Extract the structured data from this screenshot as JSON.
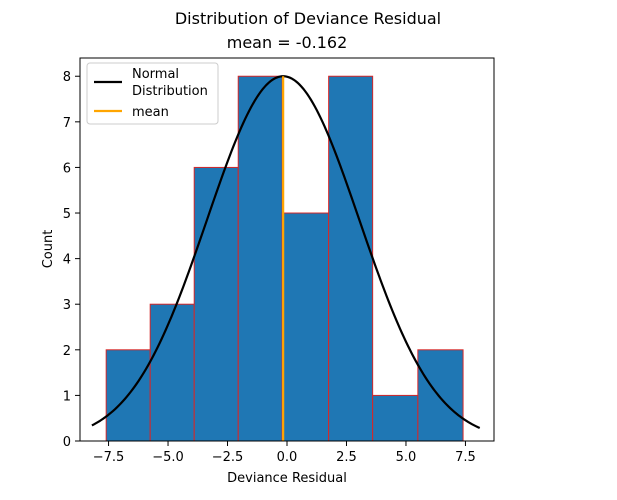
{
  "chart_data": {
    "type": "bar",
    "title": "Distribution of Deviance Residual",
    "subtitle": "mean = -0.162",
    "xlabel": "Deviance Residual",
    "ylabel": "Count",
    "xlim": [
      -8.7,
      8.7
    ],
    "ylim": [
      0,
      8.4
    ],
    "x_ticks": [
      -7.5,
      -5.0,
      -2.5,
      0.0,
      2.5,
      5.0,
      7.5
    ],
    "x_tick_labels": [
      "−7.5",
      "−5.0",
      "−2.5",
      "0.0",
      "2.5",
      "5.0",
      "7.5"
    ],
    "y_ticks": [
      0,
      1,
      2,
      3,
      4,
      5,
      6,
      7,
      8
    ],
    "y_tick_labels": [
      "0",
      "1",
      "2",
      "3",
      "4",
      "5",
      "6",
      "7",
      "8"
    ],
    "bins": [
      {
        "x0": -7.6,
        "x1": -5.75,
        "count": 2
      },
      {
        "x0": -5.75,
        "x1": -3.9,
        "count": 3
      },
      {
        "x0": -3.9,
        "x1": -2.05,
        "count": 6
      },
      {
        "x0": -2.05,
        "x1": -0.2,
        "count": 8
      },
      {
        "x0": -0.2,
        "x1": 1.75,
        "count": 5
      },
      {
        "x0": 1.75,
        "x1": 3.6,
        "count": 8
      },
      {
        "x0": 3.6,
        "x1": 5.5,
        "count": 1
      },
      {
        "x0": 5.5,
        "x1": 7.4,
        "count": 2
      }
    ],
    "mean": -0.162,
    "normal_curve": {
      "mu": -0.162,
      "sigma": 3.2,
      "peak": 8.0,
      "x_range": [
        -8.2,
        8.1
      ]
    },
    "grid": false,
    "legend_position": "top-left",
    "legend": [
      {
        "label_lines": [
          "Normal",
          "Distribution"
        ],
        "color": "#000000"
      },
      {
        "label_lines": [
          "mean"
        ],
        "color": "#ffa500"
      }
    ],
    "colors": {
      "bar_fill": "#1f77b4",
      "bar_edge": "#d62728",
      "curve": "#000000",
      "mean": "#ffa500"
    }
  }
}
